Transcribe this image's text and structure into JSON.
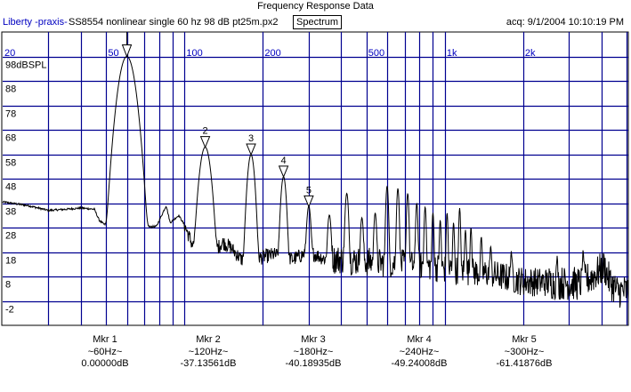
{
  "header": {
    "title": "Frequency Response Data",
    "source": "Liberty -praxis-",
    "description": "SS8554 nonlinear single 60 hz 98 dB pt25m.px2",
    "view_button": "Spectrum",
    "acquired": "acq: 9/1/2004 10:10:19 PM"
  },
  "chart_data": {
    "type": "line",
    "title": "Frequency Response Data",
    "xscale": "log",
    "xlim": [
      20,
      5070
    ],
    "ylim": [
      -12,
      108
    ],
    "x_tick_labels": [
      {
        "f": 20,
        "label": "20"
      },
      {
        "f": 50,
        "label": "50"
      },
      {
        "f": 100,
        "label": "100"
      },
      {
        "f": 200,
        "label": "200"
      },
      {
        "f": 500,
        "label": "500"
      },
      {
        "f": 1000,
        "label": "1k"
      },
      {
        "f": 2000,
        "label": "2k"
      }
    ],
    "x_gridlines": [
      30,
      40,
      50,
      60,
      70,
      80,
      90,
      100,
      200,
      300,
      400,
      500,
      600,
      700,
      800,
      900,
      1000,
      2000,
      3000,
      4000,
      5000
    ],
    "y_tick_labels": [
      {
        "v": 98,
        "label": "98dBSPL"
      },
      {
        "v": 88,
        "label": "88"
      },
      {
        "v": 78,
        "label": "78"
      },
      {
        "v": 68,
        "label": "68"
      },
      {
        "v": 58,
        "label": "58"
      },
      {
        "v": 48,
        "label": "48"
      },
      {
        "v": 38,
        "label": "38"
      },
      {
        "v": 28,
        "label": "28"
      },
      {
        "v": 18,
        "label": "18"
      },
      {
        "v": 8,
        "label": "8"
      },
      {
        "v": -2,
        "label": "-2"
      }
    ],
    "grid": true,
    "grid_color": "#000090",
    "trace_color": "#000000",
    "baseline": [
      [
        20,
        38.5
      ],
      [
        25,
        37
      ],
      [
        30,
        35
      ],
      [
        35,
        35.5
      ],
      [
        40,
        36
      ],
      [
        45,
        35.5
      ],
      [
        47,
        31
      ],
      [
        50,
        28.5
      ],
      [
        55,
        28
      ],
      [
        70,
        28
      ],
      [
        78,
        28.5
      ],
      [
        85,
        37
      ],
      [
        88,
        30
      ],
      [
        95,
        33
      ],
      [
        100,
        29
      ],
      [
        108,
        20
      ],
      [
        115,
        18
      ],
      [
        130,
        18
      ],
      [
        140,
        22
      ],
      [
        150,
        20
      ],
      [
        165,
        15
      ],
      [
        175,
        14
      ],
      [
        200,
        16
      ],
      [
        220,
        17
      ],
      [
        260,
        15
      ],
      [
        300,
        18
      ],
      [
        350,
        15
      ],
      [
        400,
        15
      ],
      [
        500,
        14
      ],
      [
        700,
        13
      ],
      [
        900,
        12
      ],
      [
        1000,
        11
      ],
      [
        1500,
        9
      ],
      [
        2000,
        6
      ],
      [
        2600,
        5.5
      ],
      [
        3300,
        5
      ],
      [
        3700,
        8
      ],
      [
        4100,
        12
      ],
      [
        4300,
        6
      ],
      [
        4600,
        2
      ],
      [
        5070,
        2
      ]
    ],
    "harmonics": [
      [
        60,
        98
      ],
      [
        120,
        60.9
      ],
      [
        180,
        57.8
      ],
      [
        240,
        48.8
      ],
      [
        300,
        36.6
      ],
      [
        360,
        33
      ],
      [
        420,
        42
      ],
      [
        480,
        32
      ],
      [
        540,
        34
      ],
      [
        600,
        45
      ],
      [
        660,
        44
      ],
      [
        720,
        42
      ],
      [
        780,
        38
      ],
      [
        840,
        36.5
      ],
      [
        900,
        34
      ],
      [
        960,
        31
      ],
      [
        1020,
        34
      ],
      [
        1080,
        30
      ],
      [
        1140,
        36
      ],
      [
        1200,
        27
      ],
      [
        1260,
        28
      ],
      [
        1380,
        24
      ],
      [
        1500,
        20
      ],
      [
        1800,
        18
      ],
      [
        2700,
        15
      ],
      [
        3400,
        18
      ]
    ],
    "markers": [
      {
        "label": "Mkr 1",
        "number": "1",
        "freq": "~60Hz~",
        "level": "0.00000dB",
        "f": 60,
        "db": 98
      },
      {
        "label": "Mkr 2",
        "number": "2",
        "freq": "~120Hz~",
        "level": "-37.13561dB",
        "f": 120,
        "db": 60.86
      },
      {
        "label": "Mkr 3",
        "number": "3",
        "freq": "~180Hz~",
        "level": "-40.18935dB",
        "f": 180,
        "db": 57.81
      },
      {
        "label": "Mkr 4",
        "number": "4",
        "freq": "~240Hz~",
        "level": "-49.24008dB",
        "f": 240,
        "db": 48.76
      },
      {
        "label": "Mkr 5",
        "number": "5",
        "freq": "~300Hz~",
        "level": "-61.41876dB",
        "f": 300,
        "db": 36.58
      }
    ]
  }
}
